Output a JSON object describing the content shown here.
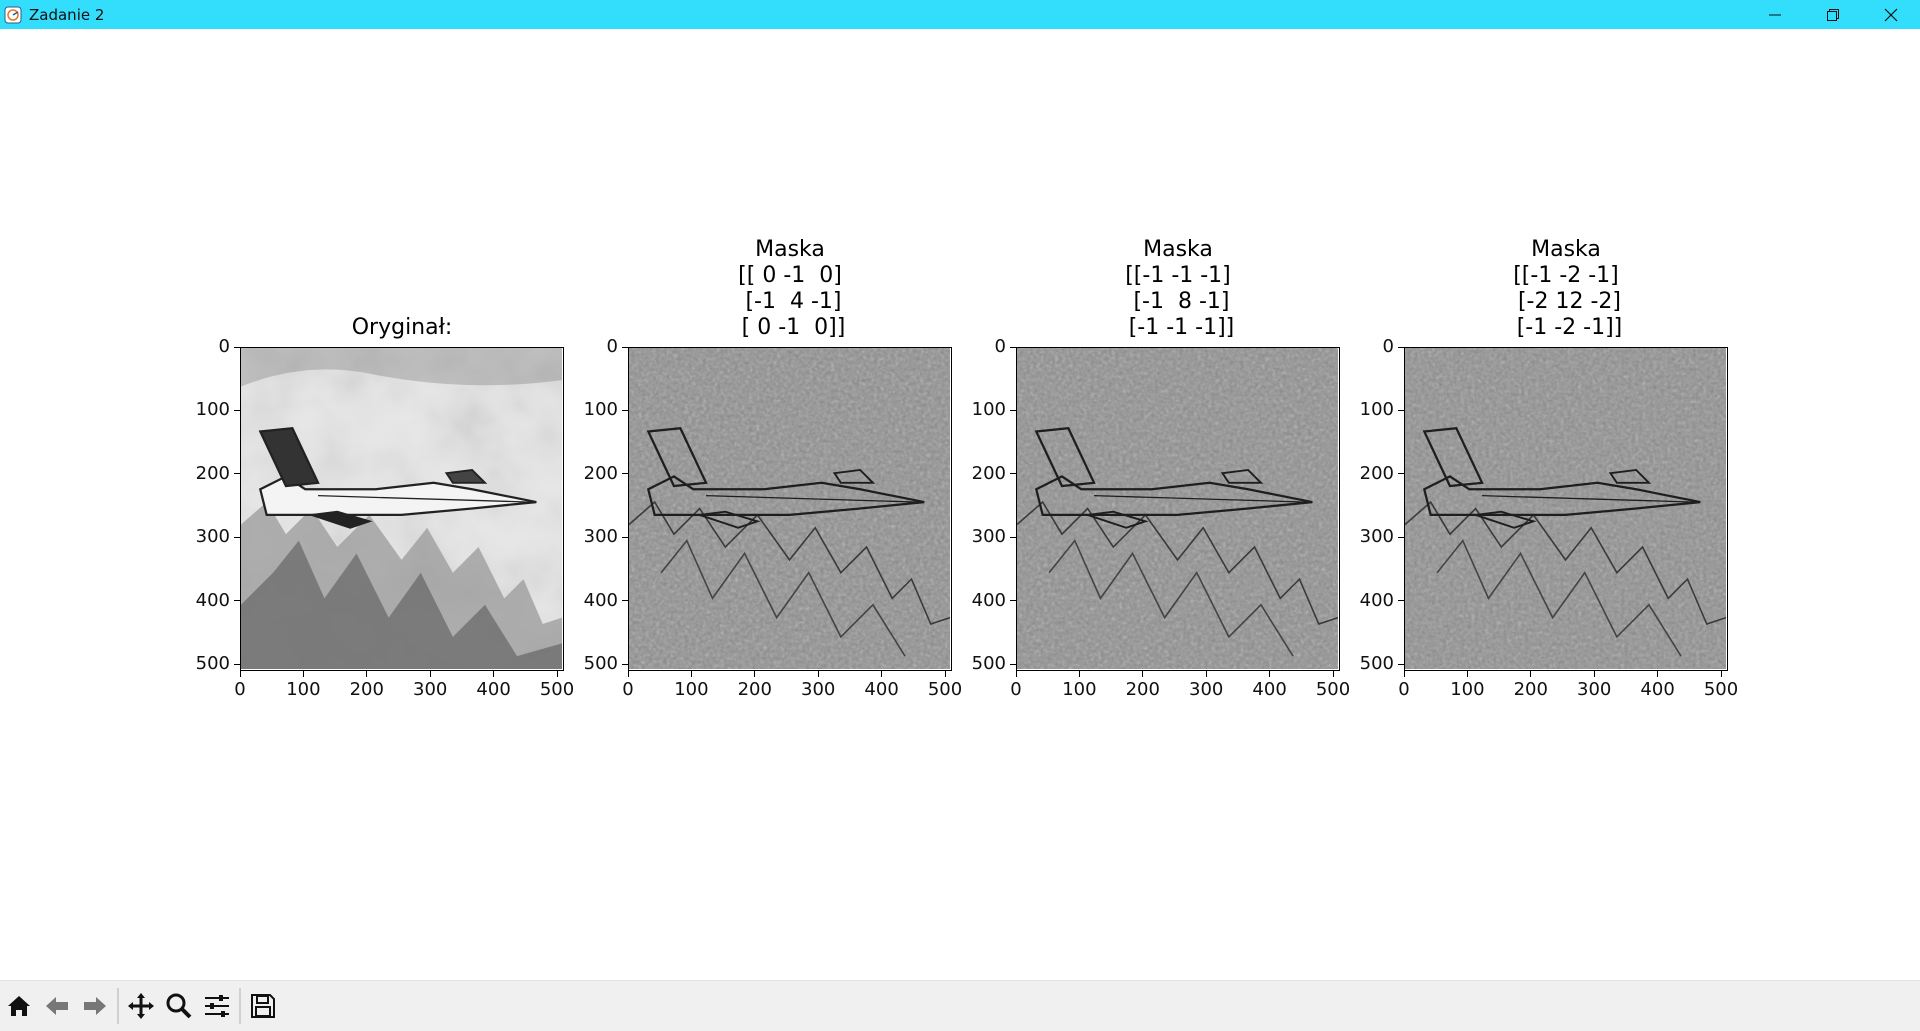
{
  "window": {
    "title": "Zadanie 2",
    "icon": "matplotlib-figure-icon",
    "controls": [
      "minimize-icon",
      "restore-icon",
      "close-icon"
    ]
  },
  "subplots": [
    {
      "title": "Oryginał:",
      "image": "original grayscale F-16 photo",
      "xticks": [
        "0",
        "100",
        "200",
        "300",
        "400",
        "500"
      ],
      "yticks": [
        "0",
        "100",
        "200",
        "300",
        "400",
        "500"
      ]
    },
    {
      "title": "Maska\n[[ 0 -1  0]\n [-1  4 -1]\n [ 0 -1  0]]",
      "image": "high-pass filtered",
      "xticks": [
        "0",
        "100",
        "200",
        "300",
        "400",
        "500"
      ],
      "yticks": [
        "0",
        "100",
        "200",
        "300",
        "400",
        "500"
      ]
    },
    {
      "title": "Maska\n[[-1 -1 -1]\n [-1  8 -1]\n [-1 -1 -1]]",
      "image": "high-pass filtered",
      "xticks": [
        "0",
        "100",
        "200",
        "300",
        "400",
        "500"
      ],
      "yticks": [
        "0",
        "100",
        "200",
        "300",
        "400",
        "500"
      ]
    },
    {
      "title": "Maska\n[[-1 -2 -1]\n [-2 12 -2]\n [-1 -2 -1]]",
      "image": "high-pass filtered",
      "xticks": [
        "0",
        "100",
        "200",
        "300",
        "400",
        "500"
      ],
      "yticks": [
        "0",
        "100",
        "200",
        "300",
        "400",
        "500"
      ]
    }
  ],
  "axis_range": {
    "x": [
      0,
      511
    ],
    "y": [
      0,
      511
    ]
  },
  "toolbar": {
    "buttons": [
      "home-icon",
      "back-icon",
      "forward-icon",
      "pan-icon",
      "zoom-icon",
      "configure-subplots-icon",
      "save-icon"
    ]
  },
  "colors": {
    "titlebar": "#33ddfc",
    "toolbar": "#f0f0f0"
  }
}
